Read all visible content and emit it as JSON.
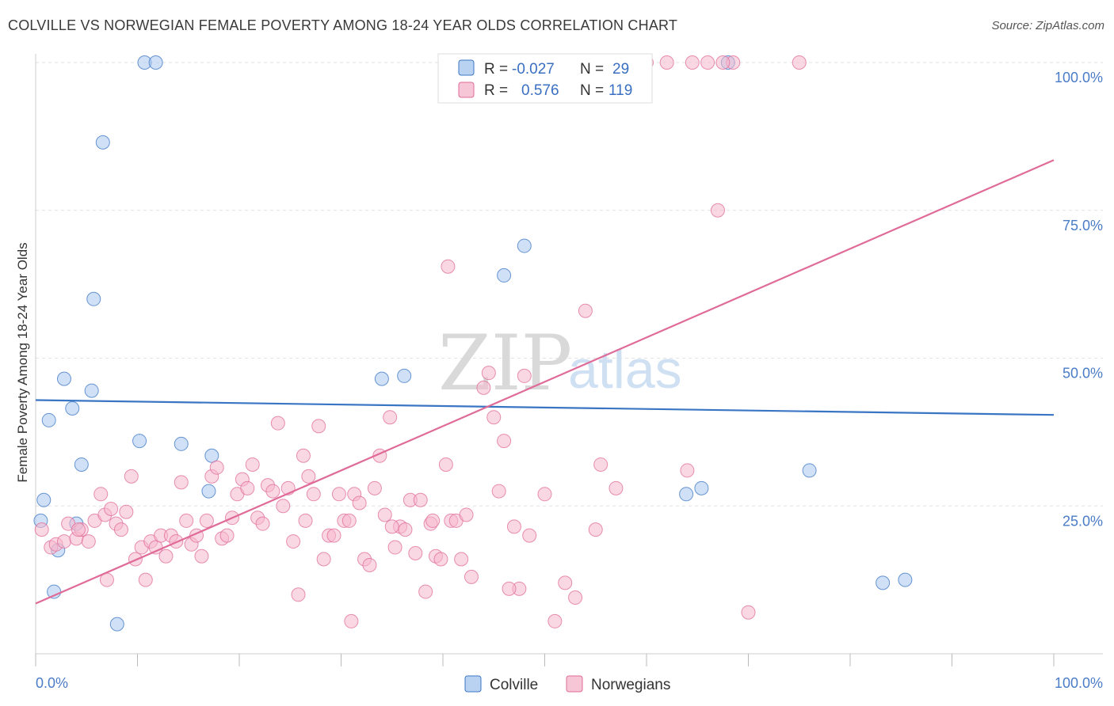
{
  "title": "COLVILLE VS NORWEGIAN FEMALE POVERTY AMONG 18-24 YEAR OLDS CORRELATION CHART",
  "source": "Source: ZipAtlas.com",
  "watermark": {
    "zip": "ZIP",
    "atlas": "atlas"
  },
  "colors": {
    "colville": "#3a75c4",
    "colville_fill": "#a9c7ee",
    "norwegians": "#e06b98",
    "norwegians_fill": "#f5b8cc",
    "tick": "#4a7cc7"
  },
  "legend": {
    "rows": [
      {
        "r_label": "R =",
        "r_value": "-0.027",
        "n_label": "N =",
        "n_value": "29"
      },
      {
        "r_label": "R =",
        "r_value": "0.576",
        "n_label": "N =",
        "n_value": "119"
      }
    ]
  },
  "chart_data": {
    "type": "scatter",
    "title": "COLVILLE VS NORWEGIAN FEMALE POVERTY AMONG 18-24 YEAR OLDS CORRELATION CHART",
    "xlabel": "",
    "ylabel": "Female Poverty Among 18-24 Year Olds",
    "xlim": [
      0,
      100
    ],
    "ylim": [
      0,
      100
    ],
    "x_tick_labels": [
      "0.0%",
      "100.0%"
    ],
    "y_tick_labels": [
      "25.0%",
      "50.0%",
      "75.0%",
      "100.0%"
    ],
    "y_tick_values": [
      25,
      50,
      75,
      100
    ],
    "grid": true,
    "legend_position": "bottom-center",
    "series": [
      {
        "name": "Colville",
        "r": -0.027,
        "n": 29,
        "trend": {
          "x": [
            0,
            100
          ],
          "y": [
            42.9,
            40.4
          ]
        },
        "points": [
          [
            0.5,
            22.5
          ],
          [
            0.8,
            26.0
          ],
          [
            1.3,
            39.5
          ],
          [
            1.8,
            10.5
          ],
          [
            2.2,
            17.5
          ],
          [
            2.8,
            46.5
          ],
          [
            3.6,
            41.5
          ],
          [
            4.0,
            22.0
          ],
          [
            4.5,
            32.0
          ],
          [
            5.5,
            44.5
          ],
          [
            5.7,
            60.0
          ],
          [
            6.6,
            86.5
          ],
          [
            8.0,
            5.0
          ],
          [
            10.2,
            36.0
          ],
          [
            10.7,
            100.0
          ],
          [
            11.8,
            100.0
          ],
          [
            14.3,
            35.5
          ],
          [
            17.0,
            27.5
          ],
          [
            17.3,
            33.5
          ],
          [
            34.0,
            46.5
          ],
          [
            36.2,
            47.0
          ],
          [
            46.0,
            64.0
          ],
          [
            48.0,
            69.0
          ],
          [
            63.9,
            27.0
          ],
          [
            65.4,
            28.0
          ],
          [
            68.0,
            100.0
          ],
          [
            76.0,
            31.0
          ],
          [
            83.2,
            12.0
          ],
          [
            85.4,
            12.5
          ]
        ]
      },
      {
        "name": "Norwegians",
        "r": 0.576,
        "n": 119,
        "trend": {
          "x": [
            0,
            100
          ],
          "y": [
            8.5,
            83.5
          ]
        },
        "points": [
          [
            0.6,
            21.0
          ],
          [
            1.5,
            18.0
          ],
          [
            2.0,
            18.5
          ],
          [
            2.8,
            19.0
          ],
          [
            3.2,
            22.0
          ],
          [
            4.0,
            19.5
          ],
          [
            4.5,
            21.0
          ],
          [
            5.2,
            19.0
          ],
          [
            5.8,
            22.5
          ],
          [
            6.4,
            27.0
          ],
          [
            6.8,
            23.5
          ],
          [
            7.4,
            24.5
          ],
          [
            7.9,
            22.0
          ],
          [
            8.4,
            21.0
          ],
          [
            8.9,
            24.0
          ],
          [
            9.4,
            30.0
          ],
          [
            9.8,
            16.0
          ],
          [
            10.4,
            18.0
          ],
          [
            10.8,
            12.5
          ],
          [
            11.3,
            19.0
          ],
          [
            11.8,
            18.0
          ],
          [
            12.3,
            20.0
          ],
          [
            12.8,
            16.5
          ],
          [
            13.3,
            20.0
          ],
          [
            13.8,
            19.0
          ],
          [
            14.3,
            29.0
          ],
          [
            14.8,
            22.5
          ],
          [
            15.3,
            18.5
          ],
          [
            15.8,
            20.0
          ],
          [
            16.3,
            16.5
          ],
          [
            16.8,
            22.5
          ],
          [
            17.3,
            30.0
          ],
          [
            17.8,
            31.5
          ],
          [
            18.3,
            19.5
          ],
          [
            18.8,
            20.0
          ],
          [
            19.3,
            23.0
          ],
          [
            19.8,
            27.0
          ],
          [
            20.3,
            29.5
          ],
          [
            20.8,
            28.0
          ],
          [
            21.3,
            32.0
          ],
          [
            21.8,
            23.0
          ],
          [
            22.3,
            22.0
          ],
          [
            22.8,
            28.5
          ],
          [
            23.3,
            27.5
          ],
          [
            23.8,
            39.0
          ],
          [
            24.3,
            25.0
          ],
          [
            24.8,
            28.0
          ],
          [
            25.3,
            19.0
          ],
          [
            25.8,
            10.0
          ],
          [
            26.3,
            33.5
          ],
          [
            26.8,
            30.0
          ],
          [
            27.3,
            27.0
          ],
          [
            27.8,
            38.5
          ],
          [
            28.3,
            16.0
          ],
          [
            28.8,
            20.0
          ],
          [
            29.3,
            20.0
          ],
          [
            29.8,
            27.0
          ],
          [
            30.3,
            22.5
          ],
          [
            30.8,
            22.5
          ],
          [
            31.3,
            27.0
          ],
          [
            31.8,
            25.5
          ],
          [
            32.3,
            16.0
          ],
          [
            32.8,
            15.0
          ],
          [
            33.3,
            28.0
          ],
          [
            33.8,
            33.5
          ],
          [
            34.3,
            23.5
          ],
          [
            34.8,
            40.0
          ],
          [
            35.3,
            18.0
          ],
          [
            35.8,
            21.5
          ],
          [
            36.3,
            21.0
          ],
          [
            36.8,
            26.0
          ],
          [
            37.3,
            17.0
          ],
          [
            37.8,
            26.0
          ],
          [
            38.3,
            10.5
          ],
          [
            38.8,
            22.0
          ],
          [
            39.3,
            16.5
          ],
          [
            39.8,
            16.0
          ],
          [
            40.3,
            32.0
          ],
          [
            40.8,
            22.5
          ],
          [
            41.3,
            22.5
          ],
          [
            41.8,
            16.0
          ],
          [
            42.3,
            23.5
          ],
          [
            42.8,
            13.0
          ],
          [
            44.0,
            45.0
          ],
          [
            44.5,
            47.5
          ],
          [
            45.0,
            40.0
          ],
          [
            45.5,
            27.5
          ],
          [
            46.0,
            36.0
          ],
          [
            47.0,
            21.5
          ],
          [
            47.5,
            11.0
          ],
          [
            48.0,
            47.0
          ],
          [
            48.5,
            20.0
          ],
          [
            50.0,
            27.0
          ],
          [
            52.0,
            12.0
          ],
          [
            53.0,
            9.5
          ],
          [
            54.0,
            58.0
          ],
          [
            55.0,
            21.0
          ],
          [
            55.5,
            32.0
          ],
          [
            57.0,
            28.0
          ],
          [
            58.0,
            100.0
          ],
          [
            60.0,
            100.0
          ],
          [
            62.0,
            100.0
          ],
          [
            64.0,
            31.0
          ],
          [
            66.0,
            100.0
          ],
          [
            67.0,
            75.0
          ],
          [
            68.5,
            100.0
          ],
          [
            70.0,
            7.0
          ],
          [
            75.0,
            100.0
          ],
          [
            4.2,
            21.0
          ],
          [
            7.0,
            12.5
          ],
          [
            26.5,
            22.5
          ],
          [
            31.0,
            5.5
          ],
          [
            39.0,
            22.5
          ],
          [
            46.5,
            11.0
          ],
          [
            51.0,
            5.5
          ],
          [
            35.0,
            21.5
          ],
          [
            40.5,
            65.5
          ],
          [
            57.5,
            100.0
          ],
          [
            64.5,
            100.0
          ],
          [
            67.5,
            100.0
          ],
          [
            57.0,
            100.0
          ]
        ]
      }
    ]
  }
}
